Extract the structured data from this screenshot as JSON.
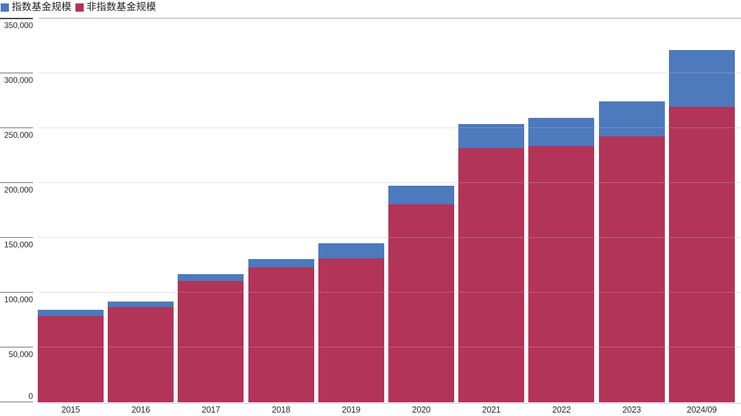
{
  "chart_data": {
    "type": "bar",
    "stacked": true,
    "title": "",
    "xlabel": "",
    "ylabel": "",
    "grid": true,
    "legend_position": "top-left",
    "categories": [
      "2015",
      "2016",
      "2017",
      "2018",
      "2019",
      "2020",
      "2021",
      "2022",
      "2023",
      "2024/09"
    ],
    "series": [
      {
        "name": "指数基金规模",
        "color": "#4d79bd",
        "values": [
          5500,
          5200,
          6300,
          7300,
          13600,
          16900,
          21600,
          25300,
          31900,
          51600
        ]
      },
      {
        "name": "非指数基金规模",
        "color": "#b23458",
        "values": [
          78400,
          86400,
          110300,
          122800,
          131100,
          180500,
          231800,
          233600,
          242000,
          269100
        ]
      }
    ],
    "stack_order_bottom_to_top": [
      "非指数基金规模",
      "指数基金规模"
    ],
    "ylim": [
      0,
      350000
    ],
    "ytick_step": 50000,
    "yticks": [
      {
        "value": 0,
        "label": "0"
      },
      {
        "value": 50000,
        "label": "50,000"
      },
      {
        "value": 100000,
        "label": "100,000"
      },
      {
        "value": 150000,
        "label": "150,000"
      },
      {
        "value": 200000,
        "label": "200,000"
      },
      {
        "value": 250000,
        "label": "250,000"
      },
      {
        "value": 300000,
        "label": "300,000"
      },
      {
        "value": 350000,
        "label": "350,000"
      }
    ]
  }
}
